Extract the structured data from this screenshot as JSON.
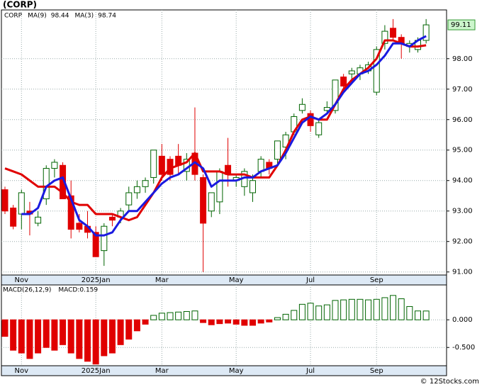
{
  "chart_data": [
    {
      "type": "candlestick",
      "title": "(CORP)",
      "name": "CORP",
      "name_color": "#008000",
      "up_color": "#006400",
      "down_color": "#e00000",
      "grid": true,
      "categories": [
        null,
        null,
        "Nov",
        null,
        null,
        null,
        null,
        null,
        null,
        null,
        null,
        "2025Jan",
        null,
        null,
        null,
        null,
        null,
        null,
        null,
        "Mar",
        null,
        null,
        null,
        null,
        null,
        null,
        null,
        null,
        "May",
        null,
        null,
        null,
        null,
        null,
        null,
        null,
        null,
        "Jul",
        null,
        null,
        null,
        null,
        null,
        null,
        null,
        "Sep",
        null,
        null,
        null,
        null,
        null,
        null
      ],
      "open": [
        93.7,
        93.1,
        92.9,
        93.0,
        92.6,
        93.4,
        94.4,
        94.5,
        93.5,
        92.6,
        92.5,
        92.3,
        91.7,
        92.8,
        92.8,
        93.2,
        93.6,
        93.8,
        94.1,
        94.8,
        94.7,
        94.8,
        94.3,
        94.9,
        94.1,
        93.0,
        93.3,
        94.5,
        94.0,
        93.8,
        93.6,
        94.3,
        94.6,
        94.7,
        95.1,
        95.6,
        96.3,
        96.2,
        95.5,
        96.3,
        96.3,
        97.4,
        97.5,
        97.5,
        97.6,
        96.9,
        98.5,
        99.0,
        98.7,
        98.4,
        98.3,
        98.6
      ],
      "high": [
        93.8,
        93.2,
        93.7,
        93.3,
        93.0,
        94.5,
        94.7,
        94.6,
        94.0,
        92.9,
        93.0,
        92.5,
        92.6,
        92.9,
        93.1,
        93.8,
        94.0,
        94.1,
        95.0,
        95.2,
        94.8,
        95.2,
        94.9,
        96.4,
        94.2,
        93.6,
        94.4,
        95.4,
        94.2,
        94.4,
        94.2,
        94.8,
        94.7,
        95.3,
        95.6,
        96.2,
        96.7,
        96.3,
        96.0,
        96.6,
        97.3,
        97.5,
        97.7,
        97.8,
        97.9,
        98.4,
        99.1,
        99.3,
        98.8,
        98.6,
        98.7,
        99.3
      ],
      "low": [
        92.9,
        92.4,
        92.4,
        92.2,
        92.5,
        93.2,
        94.1,
        93.4,
        92.1,
        92.3,
        92.1,
        91.5,
        91.2,
        92.5,
        92.6,
        93.0,
        93.4,
        93.6,
        93.9,
        94.0,
        94.0,
        94.2,
        94.0,
        94.0,
        91.0,
        92.8,
        92.9,
        93.8,
        93.8,
        93.5,
        93.3,
        94.1,
        94.2,
        94.5,
        94.7,
        95.5,
        96.2,
        95.6,
        95.4,
        96.2,
        96.2,
        96.9,
        97.2,
        97.3,
        97.5,
        96.8,
        98.3,
        98.6,
        98.0,
        98.2,
        98.2,
        98.5
      ],
      "close": [
        93.0,
        92.5,
        93.6,
        92.9,
        92.8,
        94.4,
        94.6,
        93.4,
        92.4,
        92.4,
        92.3,
        91.5,
        92.5,
        92.7,
        93.0,
        93.6,
        93.8,
        94.0,
        95.0,
        94.2,
        94.2,
        94.5,
        94.7,
        94.2,
        92.6,
        93.6,
        94.3,
        94.2,
        94.1,
        94.3,
        94.0,
        94.7,
        94.4,
        95.3,
        95.5,
        96.1,
        96.5,
        95.8,
        95.9,
        96.4,
        97.3,
        97.1,
        97.6,
        97.7,
        97.8,
        98.3,
        98.9,
        98.7,
        98.5,
        98.5,
        98.6,
        99.11
      ],
      "last_price": 99.11,
      "series": [
        {
          "name": "MA(9)",
          "color": "#e00000",
          "last_value": 98.44,
          "values": [
            94.4,
            94.3,
            94.2,
            94.0,
            93.8,
            93.8,
            93.8,
            93.6,
            93.3,
            93.2,
            93.2,
            92.9,
            92.9,
            92.9,
            92.8,
            92.7,
            92.8,
            93.2,
            93.6,
            94.1,
            94.4,
            94.5,
            94.6,
            94.9,
            94.3,
            94.3,
            94.3,
            94.2,
            94.2,
            94.2,
            94.1,
            94.1,
            94.1,
            94.5,
            95.0,
            95.6,
            96.0,
            96.1,
            96.0,
            96.0,
            96.5,
            97.0,
            97.3,
            97.5,
            97.7,
            98.0,
            98.6,
            98.6,
            98.5,
            98.4,
            98.4,
            98.44
          ]
        },
        {
          "name": "MA(3)",
          "color": "#1a1ae0",
          "last_value": 98.74,
          "values": [
            null,
            null,
            92.9,
            92.9,
            93.1,
            93.8,
            94.0,
            94.1,
            93.4,
            92.7,
            92.5,
            92.2,
            92.2,
            92.3,
            92.7,
            93.0,
            93.0,
            93.3,
            93.6,
            93.9,
            94.1,
            94.2,
            94.4,
            94.6,
            94.4,
            93.8,
            94.0,
            94.0,
            94.0,
            94.1,
            94.1,
            94.3,
            94.4,
            94.5,
            94.9,
            95.4,
            95.9,
            96.1,
            96.0,
            96.2,
            96.5,
            96.9,
            97.2,
            97.5,
            97.6,
            97.8,
            98.1,
            98.5,
            98.5,
            98.4,
            98.6,
            98.74
          ]
        }
      ],
      "ylim": [
        90.9,
        99.6
      ],
      "yticks": [
        {
          "value": 91,
          "label": "91.00"
        },
        {
          "value": 92,
          "label": "92.00"
        },
        {
          "value": 93,
          "label": "93.00"
        },
        {
          "value": 94,
          "label": "94.00"
        },
        {
          "value": 95,
          "label": "95.00"
        },
        {
          "value": 96,
          "label": "96.00"
        },
        {
          "value": 97,
          "label": "97.00"
        },
        {
          "value": 98,
          "label": "98.00"
        }
      ]
    },
    {
      "type": "bar",
      "title": "MACD(26,12,9)",
      "subtitle": "MACD:0.159",
      "subtitle_color": "#1a1ae0",
      "positive_color": "#006400",
      "negative_color": "#e00000",
      "grid": true,
      "categories": [
        null,
        null,
        "Nov",
        null,
        null,
        null,
        null,
        null,
        null,
        null,
        null,
        "2025Jan",
        null,
        null,
        null,
        null,
        null,
        null,
        null,
        "Mar",
        null,
        null,
        null,
        null,
        null,
        null,
        null,
        null,
        "May",
        null,
        null,
        null,
        null,
        null,
        null,
        null,
        null,
        "Jul",
        null,
        null,
        null,
        null,
        null,
        null,
        null,
        "Sep",
        null,
        null,
        null,
        null,
        null,
        null
      ],
      "values": [
        -0.3,
        -0.55,
        -0.6,
        -0.7,
        -0.6,
        -0.5,
        -0.55,
        -0.45,
        -0.6,
        -0.7,
        -0.75,
        -0.8,
        -0.65,
        -0.6,
        -0.45,
        -0.35,
        -0.2,
        -0.08,
        0.08,
        0.12,
        0.13,
        0.14,
        0.15,
        0.16,
        -0.05,
        -0.09,
        -0.07,
        -0.06,
        -0.08,
        -0.1,
        -0.1,
        -0.06,
        -0.04,
        0.04,
        0.1,
        0.17,
        0.28,
        0.3,
        0.25,
        0.27,
        0.35,
        0.36,
        0.37,
        0.37,
        0.36,
        0.37,
        0.4,
        0.44,
        0.38,
        0.24,
        0.16,
        0.159
      ],
      "ylim": [
        -0.83,
        0.63
      ],
      "yticks": [
        {
          "value": 0,
          "label": "0.000"
        },
        {
          "value": -0.5,
          "label": "-0.500"
        }
      ]
    }
  ],
  "footer": "© 12Stocks.com"
}
